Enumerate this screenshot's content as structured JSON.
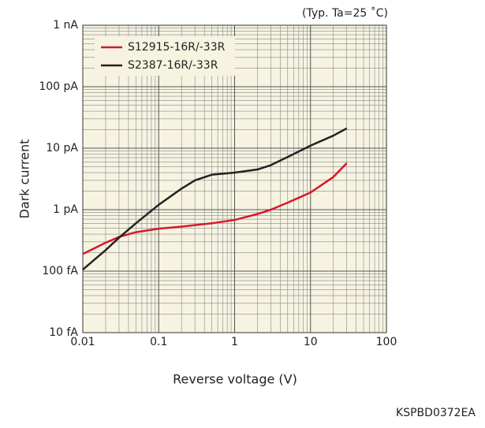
{
  "chart_data": {
    "type": "line",
    "annotation": "(Typ. Ta=25 ˚C)",
    "code": "KSPBD0372EA",
    "x_label": "Reverse voltage (V)",
    "y_label": "Dark current",
    "log_x": true,
    "log_y": true,
    "grid": true,
    "legend": "upper left",
    "xlim": [
      0.01,
      100
    ],
    "xticks": [
      0.01,
      0.1,
      1,
      10,
      100
    ],
    "ylim": [
      0.01,
      1000
    ],
    "yticks": [
      {
        "value": 0.01,
        "label": "10 fA"
      },
      {
        "value": 0.1,
        "label": "100 fA"
      },
      {
        "value": 1,
        "label": "1 pA"
      },
      {
        "value": 10,
        "label": "10 pA"
      },
      {
        "value": 100,
        "label": "100 pA"
      },
      {
        "value": 1000,
        "label": "1 nA"
      }
    ],
    "x": [
      0.01,
      0.02,
      0.03,
      0.05,
      0.1,
      0.2,
      0.3,
      0.5,
      1,
      2,
      3,
      5,
      10,
      20,
      30
    ],
    "series": [
      {
        "name": "S12915-16R/-33R",
        "color": "#d7182a",
        "values": [
          0.19,
          0.29,
          0.36,
          0.43,
          0.49,
          0.53,
          0.56,
          0.6,
          0.68,
          0.85,
          1.0,
          1.3,
          1.9,
          3.4,
          5.7
        ]
      },
      {
        "name": "S2387-16R/-33R",
        "color": "#222222",
        "values": [
          0.106,
          0.22,
          0.35,
          0.6,
          1.2,
          2.2,
          3.0,
          3.7,
          4.0,
          4.5,
          5.3,
          7.2,
          11,
          16,
          21
        ]
      }
    ]
  }
}
